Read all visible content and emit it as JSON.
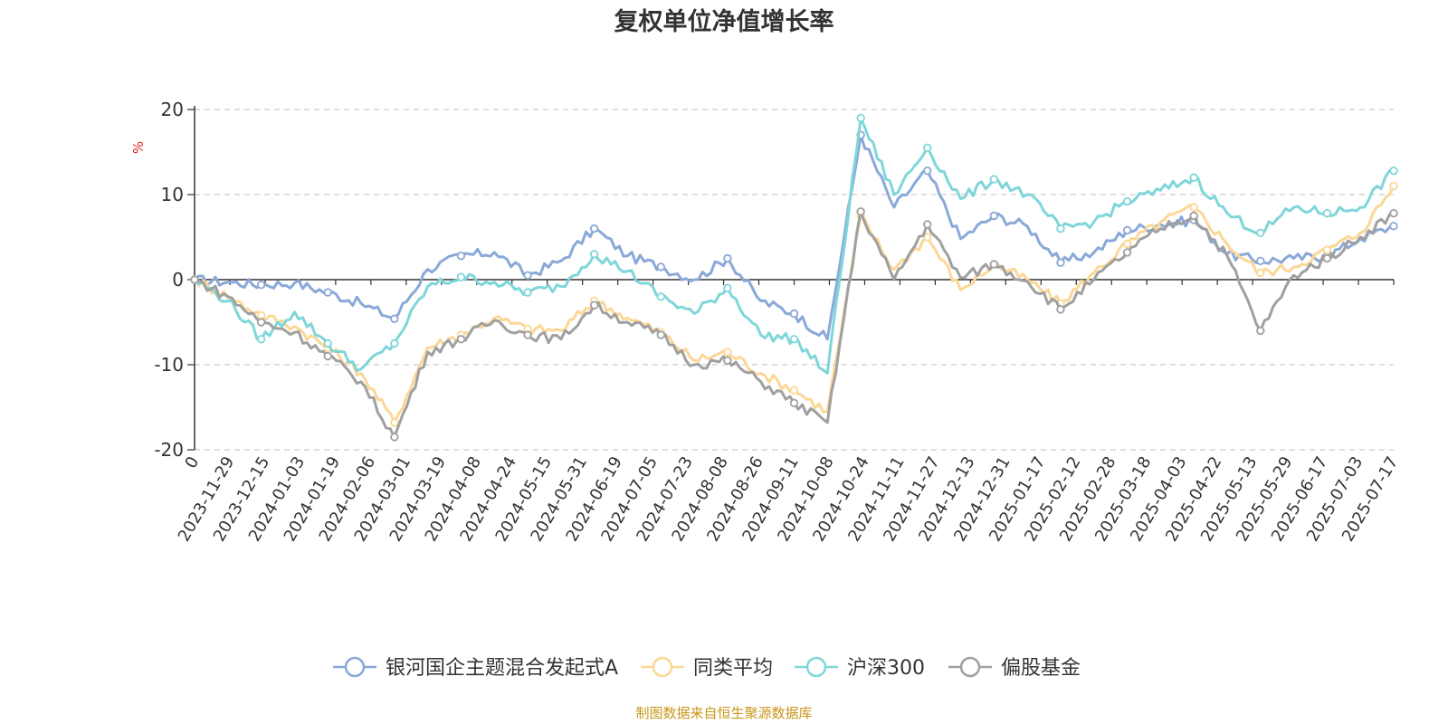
{
  "chart_data": {
    "type": "line",
    "title": "复权单位净值增长率",
    "ylabel": "%",
    "xlabel": "",
    "ylim": [
      -20,
      20
    ],
    "yticks": [
      -20,
      -10,
      0,
      10,
      20
    ],
    "grid": true,
    "legend_position": "bottom",
    "source": "制图数据来自恒生聚源数据库",
    "x_tick_labels": [
      "0",
      "2023-11-29",
      "2023-12-15",
      "2024-01-03",
      "2024-01-19",
      "2024-02-06",
      "2024-03-01",
      "2024-03-19",
      "2024-04-08",
      "2024-04-24",
      "2024-05-15",
      "2024-05-31",
      "2024-06-19",
      "2024-07-05",
      "2024-07-23",
      "2024-08-08",
      "2024-08-26",
      "2024-09-11",
      "2024-10-08",
      "2024-10-24",
      "2024-11-11",
      "2024-11-27",
      "2024-12-13",
      "2024-12-31",
      "2025-01-17",
      "2025-02-12",
      "2025-02-28",
      "2025-03-18",
      "2025-04-03",
      "2025-04-22",
      "2025-05-13",
      "2025-05-29",
      "2025-06-17",
      "2025-07-03",
      "2025-07-17"
    ],
    "series": [
      {
        "name": "银河国企主题混合发起式A",
        "color": "#8aa8d8",
        "values": [
          0,
          -0.3,
          -0.6,
          -0.4,
          -1.5,
          -2.8,
          -4.6,
          1.2,
          2.8,
          3.2,
          0.5,
          2.2,
          6.0,
          2.8,
          1.5,
          0.0,
          2.5,
          -2.5,
          -4.0,
          -7.0,
          17.0,
          8.5,
          12.8,
          4.8,
          7.5,
          6.3,
          2.0,
          3.2,
          5.8,
          6.5,
          7.0,
          3.0,
          2.2,
          2.5,
          2.8,
          4.8,
          6.3
        ]
      },
      {
        "name": "同类平均",
        "color": "#fcd796",
        "values": [
          0,
          -2.0,
          -4.2,
          -5.5,
          -8.0,
          -11.0,
          -16.8,
          -8.0,
          -6.5,
          -4.5,
          -5.8,
          -6.0,
          -2.5,
          -4.5,
          -6.2,
          -9.5,
          -8.5,
          -11.0,
          -13.0,
          -15.5,
          7.5,
          1.2,
          5.0,
          -1.2,
          1.8,
          0.0,
          -2.8,
          0.8,
          4.2,
          6.8,
          8.5,
          4.2,
          0.8,
          1.5,
          3.5,
          5.5,
          11.0
        ]
      },
      {
        "name": "沪深300",
        "color": "#7fd6d9",
        "values": [
          0,
          -2.5,
          -7.0,
          -3.8,
          -7.5,
          -10.5,
          -7.5,
          -0.8,
          0.3,
          -0.3,
          -1.5,
          -0.8,
          3.0,
          1.0,
          -2.0,
          -4.0,
          -1.0,
          -6.5,
          -7.0,
          -11.0,
          19.0,
          10.0,
          15.5,
          9.5,
          11.8,
          10.0,
          6.0,
          6.8,
          9.2,
          10.5,
          12.0,
          7.8,
          5.5,
          8.5,
          7.8,
          8.5,
          12.8
        ]
      },
      {
        "name": "偏股基金",
        "color": "#a0a0a0",
        "values": [
          0,
          -2.0,
          -5.0,
          -6.2,
          -9.0,
          -12.0,
          -18.5,
          -8.5,
          -7.0,
          -4.8,
          -6.5,
          -7.0,
          -3.0,
          -5.0,
          -6.5,
          -10.0,
          -9.5,
          -12.0,
          -14.5,
          -16.8,
          8.0,
          0.0,
          6.5,
          0.2,
          1.8,
          -0.2,
          -3.5,
          0.0,
          3.2,
          6.0,
          7.5,
          2.8,
          -6.0,
          0.5,
          2.5,
          5.0,
          7.8
        ]
      }
    ]
  }
}
